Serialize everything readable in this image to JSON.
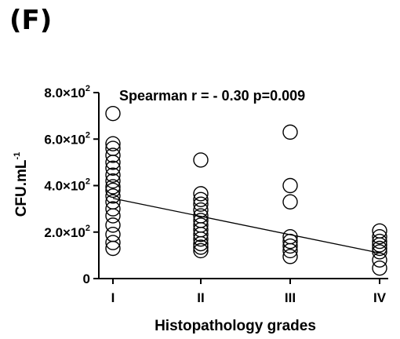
{
  "panel_label": "(F)",
  "chart_data": {
    "type": "scatter",
    "title": "",
    "annotation": "Spearman r = - 0.30 p=0.009",
    "xlabel": "Histopathology grades",
    "ylabel": {
      "base": "CFU.mL",
      "sup": "-1"
    },
    "categories": [
      "I",
      "II",
      "III",
      "IV"
    ],
    "ylim": [
      0,
      800
    ],
    "yticks": [
      {
        "value": 0,
        "label": "0",
        "mant": "",
        "exp": ""
      },
      {
        "value": 200,
        "label": "",
        "mant": "2.0×10",
        "exp": "2"
      },
      {
        "value": 400,
        "label": "",
        "mant": "4.0×10",
        "exp": "2"
      },
      {
        "value": 600,
        "label": "",
        "mant": "6.0×10",
        "exp": "2"
      },
      {
        "value": 800,
        "label": "",
        "mant": "8.0×10",
        "exp": "2"
      }
    ],
    "series": [
      {
        "points": [
          {
            "x": "I",
            "y": 710
          },
          {
            "x": "I",
            "y": 580
          },
          {
            "x": "I",
            "y": 560
          },
          {
            "x": "I",
            "y": 530
          },
          {
            "x": "I",
            "y": 500
          },
          {
            "x": "I",
            "y": 475
          },
          {
            "x": "I",
            "y": 445
          },
          {
            "x": "I",
            "y": 420
          },
          {
            "x": "I",
            "y": 395
          },
          {
            "x": "I",
            "y": 380
          },
          {
            "x": "I",
            "y": 355
          },
          {
            "x": "I",
            "y": 330
          },
          {
            "x": "I",
            "y": 300
          },
          {
            "x": "I",
            "y": 270
          },
          {
            "x": "I",
            "y": 230
          },
          {
            "x": "I",
            "y": 190
          },
          {
            "x": "I",
            "y": 155
          },
          {
            "x": "I",
            "y": 130
          },
          {
            "x": "II",
            "y": 510
          },
          {
            "x": "II",
            "y": 365
          },
          {
            "x": "II",
            "y": 340
          },
          {
            "x": "II",
            "y": 320
          },
          {
            "x": "II",
            "y": 295
          },
          {
            "x": "II",
            "y": 270
          },
          {
            "x": "II",
            "y": 250
          },
          {
            "x": "II",
            "y": 230
          },
          {
            "x": "II",
            "y": 210
          },
          {
            "x": "II",
            "y": 190
          },
          {
            "x": "II",
            "y": 170
          },
          {
            "x": "II",
            "y": 150
          },
          {
            "x": "II",
            "y": 135
          },
          {
            "x": "II",
            "y": 120
          },
          {
            "x": "III",
            "y": 630
          },
          {
            "x": "III",
            "y": 400
          },
          {
            "x": "III",
            "y": 330
          },
          {
            "x": "III",
            "y": 180
          },
          {
            "x": "III",
            "y": 160
          },
          {
            "x": "III",
            "y": 140
          },
          {
            "x": "III",
            "y": 120
          },
          {
            "x": "III",
            "y": 95
          },
          {
            "x": "IV",
            "y": 205
          },
          {
            "x": "IV",
            "y": 180
          },
          {
            "x": "IV",
            "y": 160
          },
          {
            "x": "IV",
            "y": 145
          },
          {
            "x": "IV",
            "y": 130
          },
          {
            "x": "IV",
            "y": 115
          },
          {
            "x": "IV",
            "y": 80
          },
          {
            "x": "IV",
            "y": 45
          }
        ]
      }
    ],
    "trendline": {
      "x": [
        "I",
        "IV"
      ],
      "y": [
        345,
        110
      ]
    },
    "grid": false,
    "legend": "none"
  }
}
